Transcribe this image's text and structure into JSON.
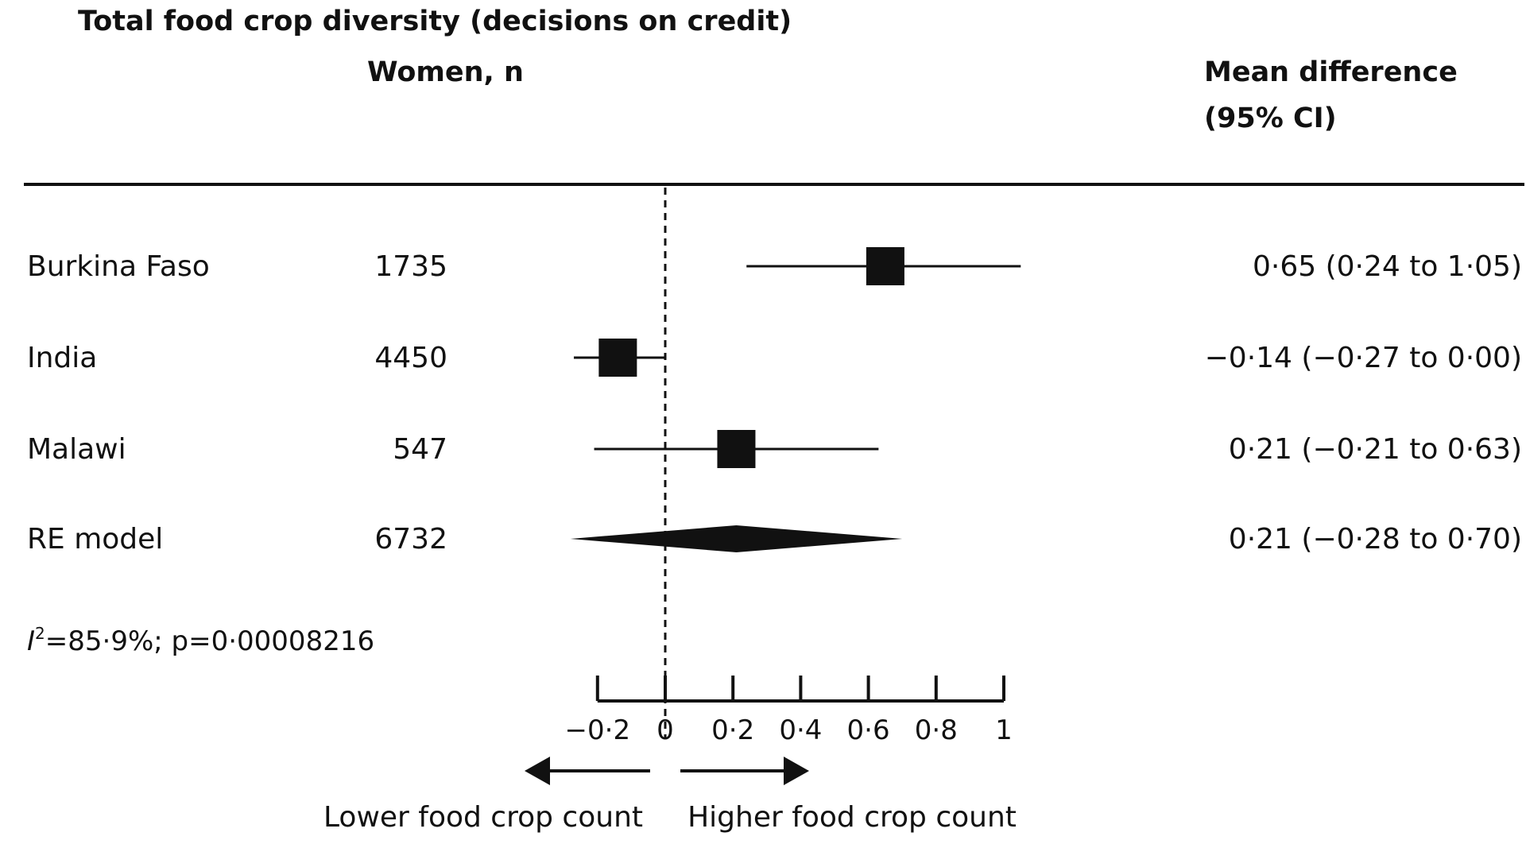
{
  "chart_data": {
    "type": "forest",
    "title": "Total food crop diversity (decisions on credit)",
    "header_n": "Women, n",
    "header_ci_line1": "Mean difference",
    "header_ci_line2": "(95% CI)",
    "rows": [
      {
        "label": "Burkina Faso",
        "n": "1735",
        "estimate": 0.65,
        "lower": 0.24,
        "upper": 1.05,
        "ci_text": "0·65 (0·24 to 1·05)",
        "kind": "study"
      },
      {
        "label": "India",
        "n": "4450",
        "estimate": -0.14,
        "lower": -0.27,
        "upper": 0.0,
        "ci_text": "−0·14 (−0·27 to 0·00)",
        "kind": "study"
      },
      {
        "label": "Malawi",
        "n": "547",
        "estimate": 0.21,
        "lower": -0.21,
        "upper": 0.63,
        "ci_text": "0·21 (−0·21 to 0·63)",
        "kind": "study"
      },
      {
        "label": "RE model",
        "n": "6732",
        "estimate": 0.21,
        "lower": -0.28,
        "upper": 0.7,
        "ci_text": "0·21 (−0·28 to 0·70)",
        "kind": "summary"
      }
    ],
    "heterogeneity": {
      "i_symbol": "I",
      "sup": "2",
      "rest": "=85·9%; p=0·00008216"
    },
    "x_ticks": [
      {
        "value": -0.2,
        "label": "−0·2"
      },
      {
        "value": 0,
        "label": "0"
      },
      {
        "value": 0.2,
        "label": "0·2"
      },
      {
        "value": 0.4,
        "label": "0·4"
      },
      {
        "value": 0.6,
        "label": "0·6"
      },
      {
        "value": 0.8,
        "label": "0·8"
      },
      {
        "value": 1,
        "label": "1"
      }
    ],
    "xlim": [
      -0.2,
      1
    ],
    "reference_line": 0,
    "left_arrow_label": "Lower food crop count",
    "right_arrow_label": "Higher food crop count"
  }
}
